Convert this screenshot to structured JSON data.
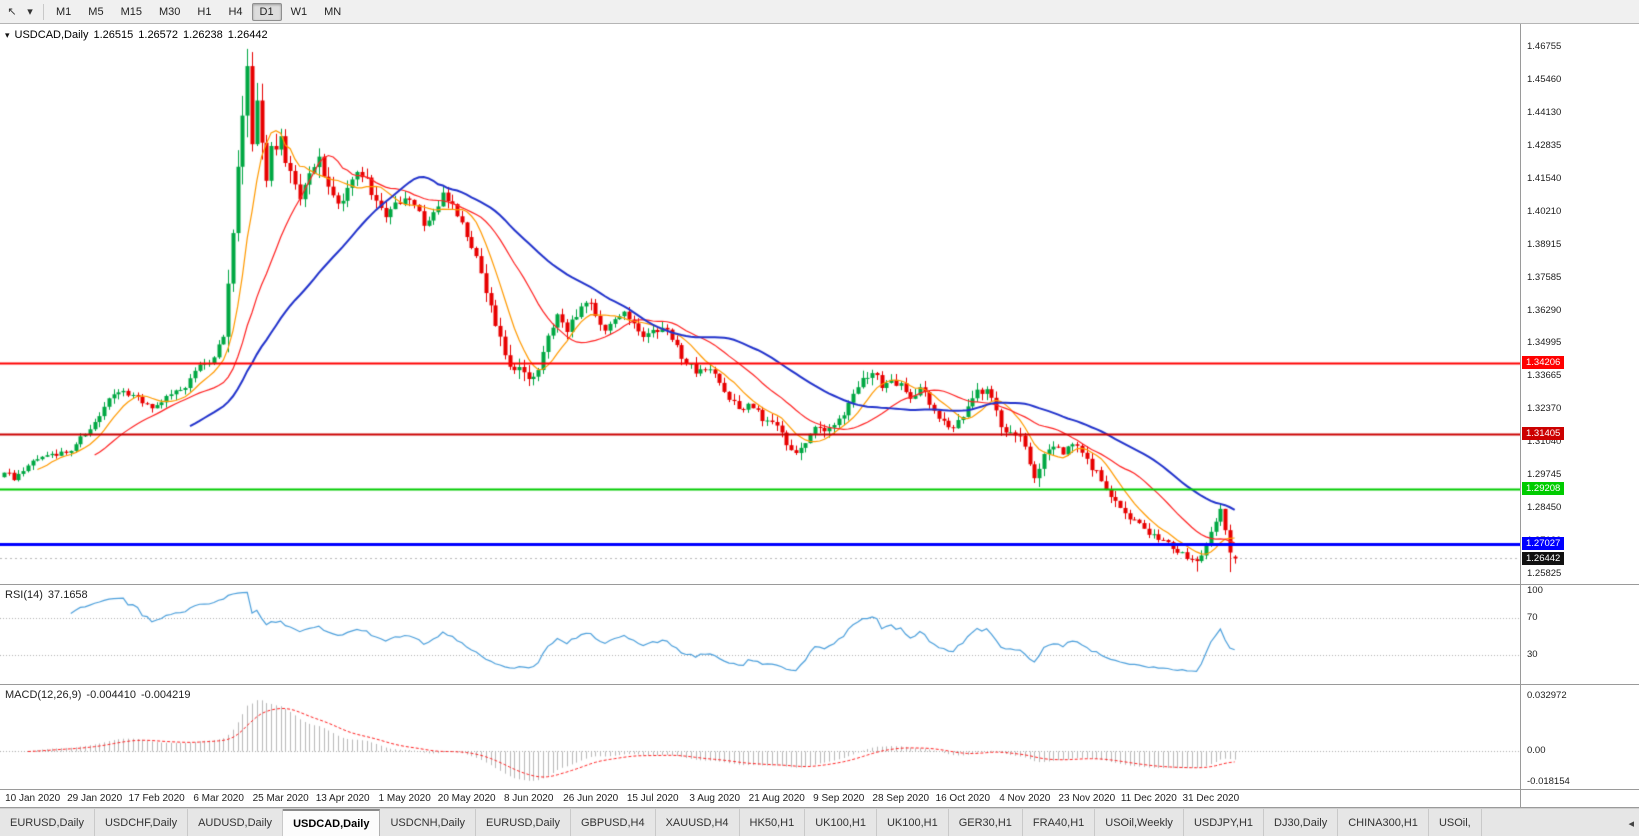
{
  "toolbar": {
    "icons": [
      {
        "name": "cursor-icon",
        "glyph": "↖"
      },
      {
        "name": "dropdown-caret-icon",
        "glyph": "▾"
      }
    ],
    "periods": [
      {
        "label": "M1",
        "active": false
      },
      {
        "label": "M5",
        "active": false
      },
      {
        "label": "M15",
        "active": false
      },
      {
        "label": "M30",
        "active": false
      },
      {
        "label": "H1",
        "active": false
      },
      {
        "label": "H4",
        "active": false
      },
      {
        "label": "D1",
        "active": true
      },
      {
        "label": "W1",
        "active": false
      },
      {
        "label": "MN",
        "active": false
      }
    ]
  },
  "chart_header": {
    "expander_glyph": "▾",
    "title": "USDCAD,Daily",
    "open": "1.26515",
    "high": "1.26572",
    "low": "1.26238",
    "close": "1.26442"
  },
  "price_axis": {
    "ticks": [
      "1.46755",
      "1.45460",
      "1.44130",
      "1.42835",
      "1.41540",
      "1.40210",
      "1.38915",
      "1.37585",
      "1.36290",
      "1.34995",
      "1.33665",
      "1.32370",
      "1.31040",
      "1.29745",
      "1.28450",
      "1.27120",
      "1.25825"
    ],
    "current_price": "1.26442",
    "current_badge_color": "#111111"
  },
  "hlines": [
    {
      "label": "1.34206",
      "price": 1.34206,
      "color": "#ff0000",
      "width": 2
    },
    {
      "label": "1.31405",
      "price": 1.31405,
      "color": "#cc0000",
      "width": 2
    },
    {
      "label": "1.29208",
      "price": 1.29208,
      "color": "#00cc00",
      "width": 2
    },
    {
      "label": "1.27027",
      "price": 1.27027,
      "color": "#0000ff",
      "width": 3
    }
  ],
  "rsi_panel": {
    "label": "RSI(14)",
    "value": "37.1658",
    "line_color": "#4da0dc",
    "level_lines": [
      70,
      30
    ],
    "axis_ticks": [
      {
        "label": "100",
        "value": 100
      },
      {
        "label": "70",
        "value": 70
      },
      {
        "label": "30",
        "value": 30
      }
    ]
  },
  "macd_panel": {
    "label": "MACD(12,26,9)",
    "main_value": "-0.004410",
    "signal_value": "-0.004219",
    "histogram_color": "#b9b9b9",
    "signal_color": "#ff2222",
    "axis_ticks": [
      {
        "label": "0.032972",
        "value": 0.032972
      },
      {
        "label": "0.00",
        "value": 0
      },
      {
        "label": "-0.018154",
        "value": -0.018154
      }
    ]
  },
  "time_axis": {
    "labels": [
      "10 Jan 2020",
      "29 Jan 2020",
      "17 Feb 2020",
      "6 Mar 2020",
      "25 Mar 2020",
      "13 Apr 2020",
      "1 May 2020",
      "20 May 2020",
      "8 Jun 2020",
      "26 Jun 2020",
      "15 Jul 2020",
      "3 Aug 2020",
      "21 Aug 2020",
      "9 Sep 2020",
      "28 Sep 2020",
      "16 Oct 2020",
      "4 Nov 2020",
      "23 Nov 2020",
      "11 Dec 2020",
      "31 Dec 2020"
    ]
  },
  "tab_bar": {
    "scroll_glyph": "◂",
    "tabs": [
      {
        "label": "EURUSD,Daily",
        "active": false
      },
      {
        "label": "USDCHF,Daily",
        "active": false
      },
      {
        "label": "AUDUSD,Daily",
        "active": false
      },
      {
        "label": "USDCAD,Daily",
        "active": true
      },
      {
        "label": "USDCNH,Daily",
        "active": false
      },
      {
        "label": "EURUSD,Daily",
        "active": false
      },
      {
        "label": "GBPUSD,H4",
        "active": false
      },
      {
        "label": "XAUUSD,H4",
        "active": false
      },
      {
        "label": "HK50,H1",
        "active": false
      },
      {
        "label": "UK100,H1",
        "active": false
      },
      {
        "label": "UK100,H1",
        "active": false
      },
      {
        "label": "GER30,H1",
        "active": false
      },
      {
        "label": "FRA40,H1",
        "active": false
      },
      {
        "label": "USOil,Weekly",
        "active": false
      },
      {
        "label": "USDJPY,H1",
        "active": false
      },
      {
        "label": "DJ30,Daily",
        "active": false
      },
      {
        "label": "CHINA300,H1",
        "active": false
      },
      {
        "label": "USOil,",
        "active": false
      }
    ]
  },
  "chart_data": {
    "type": "candlestick",
    "symbol": "USDCAD",
    "timeframe": "Daily",
    "current_bar": {
      "open": 1.26515,
      "high": 1.26572,
      "low": 1.26238,
      "close": 1.26442
    },
    "y_axis_range": [
      1.25825,
      1.46755
    ],
    "bars_total": 259,
    "first_label_bar_index": 6,
    "bars_per_label": 13,
    "up_color": "#00a843",
    "down_color": "#e80000",
    "moving_averages": [
      {
        "name": "fast",
        "period": 8,
        "color": "#ff9a00",
        "width": 1.2
      },
      {
        "name": "mid",
        "period": 20,
        "color": "#ff2222",
        "width": 1.2
      },
      {
        "name": "slow",
        "period": 40,
        "color": "#2233cc",
        "width": 2
      }
    ],
    "horizontal_levels": [
      1.34206,
      1.31405,
      1.29208,
      1.27027
    ],
    "close_path_anchors": [
      [
        0,
        1.2985,
        0.005
      ],
      [
        2,
        1.2958,
        0.005
      ],
      [
        5,
        1.302,
        0.004
      ],
      [
        8,
        1.3056,
        0.004
      ],
      [
        11,
        1.3048,
        0.004
      ],
      [
        14,
        1.3082,
        0.004
      ],
      [
        17,
        1.3138,
        0.004
      ],
      [
        20,
        1.3222,
        0.005
      ],
      [
        23,
        1.3292,
        0.005
      ],
      [
        26,
        1.3302,
        0.004
      ],
      [
        29,
        1.3262,
        0.004
      ],
      [
        32,
        1.3246,
        0.004
      ],
      [
        35,
        1.3292,
        0.005
      ],
      [
        38,
        1.3324,
        0.005
      ],
      [
        41,
        1.3402,
        0.005
      ],
      [
        44,
        1.3442,
        0.006
      ],
      [
        46,
        1.3552,
        0.01
      ],
      [
        48,
        1.398,
        0.018
      ],
      [
        50,
        1.442,
        0.022
      ],
      [
        51,
        1.456,
        0.024
      ],
      [
        52,
        1.43,
        0.022
      ],
      [
        53,
        1.446,
        0.02
      ],
      [
        54,
        1.432,
        0.018
      ],
      [
        55,
        1.412,
        0.016
      ],
      [
        56,
        1.425,
        0.014
      ],
      [
        58,
        1.429,
        0.012
      ],
      [
        60,
        1.416,
        0.011
      ],
      [
        62,
        1.406,
        0.01
      ],
      [
        64,
        1.418,
        0.01
      ],
      [
        66,
        1.423,
        0.01
      ],
      [
        68,
        1.411,
        0.009
      ],
      [
        70,
        1.403,
        0.009
      ],
      [
        72,
        1.411,
        0.009
      ],
      [
        74,
        1.418,
        0.008
      ],
      [
        76,
        1.414,
        0.008
      ],
      [
        78,
        1.407,
        0.008
      ],
      [
        80,
        1.4,
        0.007
      ],
      [
        82,
        1.404,
        0.007
      ],
      [
        84,
        1.409,
        0.007
      ],
      [
        86,
        1.404,
        0.007
      ],
      [
        88,
        1.397,
        0.007
      ],
      [
        90,
        1.402,
        0.007
      ],
      [
        92,
        1.409,
        0.007
      ],
      [
        94,
        1.406,
        0.007
      ],
      [
        96,
        1.396,
        0.007
      ],
      [
        98,
        1.388,
        0.007
      ],
      [
        100,
        1.379,
        0.008
      ],
      [
        102,
        1.365,
        0.009
      ],
      [
        104,
        1.352,
        0.01
      ],
      [
        106,
        1.343,
        0.01
      ],
      [
        108,
        1.339,
        0.009
      ],
      [
        110,
        1.335,
        0.009
      ],
      [
        112,
        1.34,
        0.008
      ],
      [
        114,
        1.352,
        0.008
      ],
      [
        116,
        1.36,
        0.008
      ],
      [
        118,
        1.356,
        0.007
      ],
      [
        120,
        1.361,
        0.007
      ],
      [
        122,
        1.366,
        0.007
      ],
      [
        124,
        1.362,
        0.007
      ],
      [
        126,
        1.356,
        0.007
      ],
      [
        128,
        1.358,
        0.006
      ],
      [
        130,
        1.362,
        0.006
      ],
      [
        132,
        1.357,
        0.006
      ],
      [
        134,
        1.352,
        0.006
      ],
      [
        136,
        1.354,
        0.006
      ],
      [
        138,
        1.357,
        0.006
      ],
      [
        140,
        1.352,
        0.006
      ],
      [
        142,
        1.345,
        0.006
      ],
      [
        144,
        1.341,
        0.006
      ],
      [
        146,
        1.338,
        0.006
      ],
      [
        148,
        1.339,
        0.006
      ],
      [
        150,
        1.335,
        0.006
      ],
      [
        152,
        1.328,
        0.006
      ],
      [
        154,
        1.323,
        0.006
      ],
      [
        156,
        1.326,
        0.006
      ],
      [
        158,
        1.323,
        0.006
      ],
      [
        160,
        1.318,
        0.006
      ],
      [
        162,
        1.316,
        0.006
      ],
      [
        164,
        1.31,
        0.006
      ],
      [
        166,
        1.306,
        0.007
      ],
      [
        168,
        1.311,
        0.007
      ],
      [
        170,
        1.317,
        0.006
      ],
      [
        172,
        1.314,
        0.006
      ],
      [
        174,
        1.316,
        0.006
      ],
      [
        176,
        1.322,
        0.006
      ],
      [
        178,
        1.329,
        0.006
      ],
      [
        180,
        1.335,
        0.007
      ],
      [
        182,
        1.338,
        0.007
      ],
      [
        184,
        1.333,
        0.006
      ],
      [
        186,
        1.335,
        0.006
      ],
      [
        188,
        1.333,
        0.006
      ],
      [
        190,
        1.329,
        0.006
      ],
      [
        192,
        1.332,
        0.006
      ],
      [
        194,
        1.327,
        0.006
      ],
      [
        196,
        1.321,
        0.006
      ],
      [
        198,
        1.316,
        0.006
      ],
      [
        200,
        1.319,
        0.006
      ],
      [
        202,
        1.324,
        0.007
      ],
      [
        204,
        1.33,
        0.007
      ],
      [
        206,
        1.333,
        0.007
      ],
      [
        208,
        1.322,
        0.008
      ],
      [
        210,
        1.313,
        0.008
      ],
      [
        212,
        1.315,
        0.007
      ],
      [
        214,
        1.309,
        0.007
      ],
      [
        216,
        1.298,
        0.008
      ],
      [
        218,
        1.304,
        0.007
      ],
      [
        220,
        1.309,
        0.006
      ],
      [
        222,
        1.306,
        0.006
      ],
      [
        224,
        1.31,
        0.006
      ],
      [
        226,
        1.307,
        0.006
      ],
      [
        228,
        1.301,
        0.006
      ],
      [
        230,
        1.296,
        0.006
      ],
      [
        232,
        1.29,
        0.006
      ],
      [
        234,
        1.285,
        0.006
      ],
      [
        236,
        1.28,
        0.006
      ],
      [
        238,
        1.278,
        0.005
      ],
      [
        240,
        1.2745,
        0.005
      ],
      [
        242,
        1.272,
        0.005
      ],
      [
        244,
        1.27,
        0.005
      ],
      [
        246,
        1.268,
        0.005
      ],
      [
        248,
        1.2655,
        0.005
      ],
      [
        250,
        1.264,
        0.005
      ],
      [
        252,
        1.269,
        0.005
      ],
      [
        253,
        1.274,
        0.005
      ],
      [
        255,
        1.2825,
        0.006
      ],
      [
        256,
        1.276,
        0.005
      ],
      [
        257,
        1.2655,
        0.006
      ],
      [
        258,
        1.26442,
        0.004
      ]
    ],
    "bar_overrides": [
      {
        "index": 2,
        "low": 1.2952
      },
      {
        "index": 51,
        "high": 1.4668
      },
      {
        "index": 217,
        "low": 1.2928
      },
      {
        "index": 250,
        "low": 1.2592
      },
      {
        "index": 257,
        "low": 1.259
      },
      {
        "index": 258,
        "open": 1.26515,
        "high": 1.26572,
        "low": 1.26238,
        "close": 1.26442
      }
    ],
    "rsi": {
      "period": 14,
      "current": 37.1658,
      "range": [
        0,
        100
      ]
    },
    "macd": {
      "fast": 12,
      "slow": 26,
      "signal": 9,
      "current_main": -0.00441,
      "current_signal": -0.004219,
      "display_range": [
        -0.02,
        0.036
      ]
    }
  }
}
